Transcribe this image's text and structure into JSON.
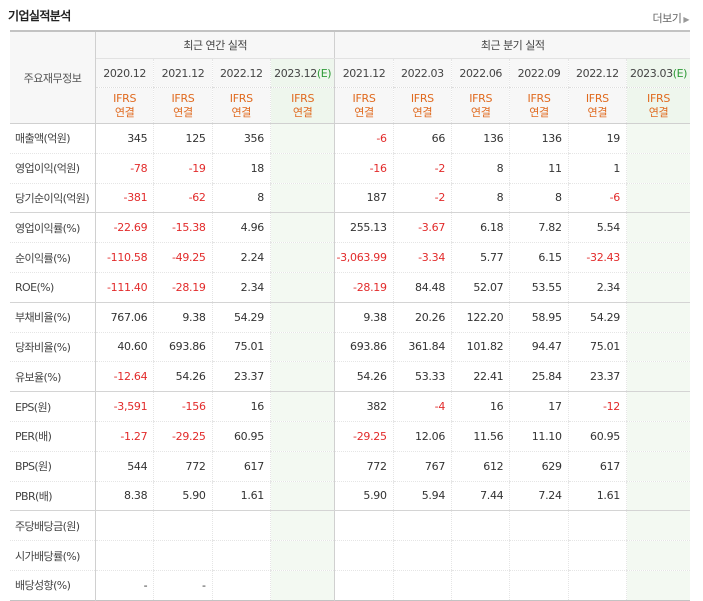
{
  "title": "기업실적분석",
  "more_label": "더보기",
  "header": {
    "item_label": "주요재무정보",
    "annual_label": "최근 연간 실적",
    "quarter_label": "최근 분기 실적",
    "ifrs_top": "IFRS",
    "ifrs_bottom": "연결"
  },
  "periods": [
    {
      "label": "2020.12",
      "estimate": ""
    },
    {
      "label": "2021.12",
      "estimate": ""
    },
    {
      "label": "2022.12",
      "estimate": ""
    },
    {
      "label": "2023.12",
      "estimate": "(E)"
    },
    {
      "label": "2021.12",
      "estimate": ""
    },
    {
      "label": "2022.03",
      "estimate": ""
    },
    {
      "label": "2022.06",
      "estimate": ""
    },
    {
      "label": "2022.09",
      "estimate": ""
    },
    {
      "label": "2022.12",
      "estimate": ""
    },
    {
      "label": "2023.03",
      "estimate": "(E)"
    }
  ],
  "rows": [
    {
      "label": "매출액(억원)",
      "values": [
        "345",
        "125",
        "356",
        "",
        "-6",
        "66",
        "136",
        "136",
        "19",
        ""
      ]
    },
    {
      "label": "영업이익(억원)",
      "values": [
        "-78",
        "-19",
        "18",
        "",
        "-16",
        "-2",
        "8",
        "11",
        "1",
        ""
      ]
    },
    {
      "label": "당기순이익(억원)",
      "values": [
        "-381",
        "-62",
        "8",
        "",
        "187",
        "-2",
        "8",
        "8",
        "-6",
        ""
      ]
    },
    {
      "label": "영업이익률(%)",
      "values": [
        "-22.69",
        "-15.38",
        "4.96",
        "",
        "255.13",
        "-3.67",
        "6.18",
        "7.82",
        "5.54",
        ""
      ]
    },
    {
      "label": "순이익률(%)",
      "values": [
        "-110.58",
        "-49.25",
        "2.24",
        "",
        "-3,063.99",
        "-3.34",
        "5.77",
        "6.15",
        "-32.43",
        ""
      ]
    },
    {
      "label": "ROE(%)",
      "values": [
        "-111.40",
        "-28.19",
        "2.34",
        "",
        "-28.19",
        "84.48",
        "52.07",
        "53.55",
        "2.34",
        ""
      ]
    },
    {
      "label": "부채비율(%)",
      "values": [
        "767.06",
        "9.38",
        "54.29",
        "",
        "9.38",
        "20.26",
        "122.20",
        "58.95",
        "54.29",
        ""
      ]
    },
    {
      "label": "당좌비율(%)",
      "values": [
        "40.60",
        "693.86",
        "75.01",
        "",
        "693.86",
        "361.84",
        "101.82",
        "94.47",
        "75.01",
        ""
      ]
    },
    {
      "label": "유보율(%)",
      "values": [
        "-12.64",
        "54.26",
        "23.37",
        "",
        "54.26",
        "53.33",
        "22.41",
        "25.84",
        "23.37",
        ""
      ]
    },
    {
      "label": "EPS(원)",
      "values": [
        "-3,591",
        "-156",
        "16",
        "",
        "382",
        "-4",
        "16",
        "17",
        "-12",
        ""
      ]
    },
    {
      "label": "PER(배)",
      "values": [
        "-1.27",
        "-29.25",
        "60.95",
        "",
        "-29.25",
        "12.06",
        "11.56",
        "11.10",
        "60.95",
        ""
      ]
    },
    {
      "label": "BPS(원)",
      "values": [
        "544",
        "772",
        "617",
        "",
        "772",
        "767",
        "612",
        "629",
        "617",
        ""
      ]
    },
    {
      "label": "PBR(배)",
      "values": [
        "8.38",
        "5.90",
        "1.61",
        "",
        "5.90",
        "5.94",
        "7.44",
        "7.24",
        "1.61",
        ""
      ]
    },
    {
      "label": "주당배당금(원)",
      "values": [
        "",
        "",
        "",
        "",
        "",
        "",
        "",
        "",
        "",
        ""
      ]
    },
    {
      "label": "시가배당률(%)",
      "values": [
        "",
        "",
        "",
        "",
        "",
        "",
        "",
        "",
        "",
        ""
      ]
    },
    {
      "label": "배당성향(%)",
      "values": [
        "-",
        "-",
        "",
        "",
        "",
        "",
        "",
        "",
        "",
        ""
      ]
    }
  ],
  "colors": {
    "negative": "#e22b2b",
    "ifrs": "#e06a1f",
    "estimate_text": "#2f9b38",
    "estimate_bg": "#f3f9f2",
    "header_bg": "#f7f7f7"
  }
}
